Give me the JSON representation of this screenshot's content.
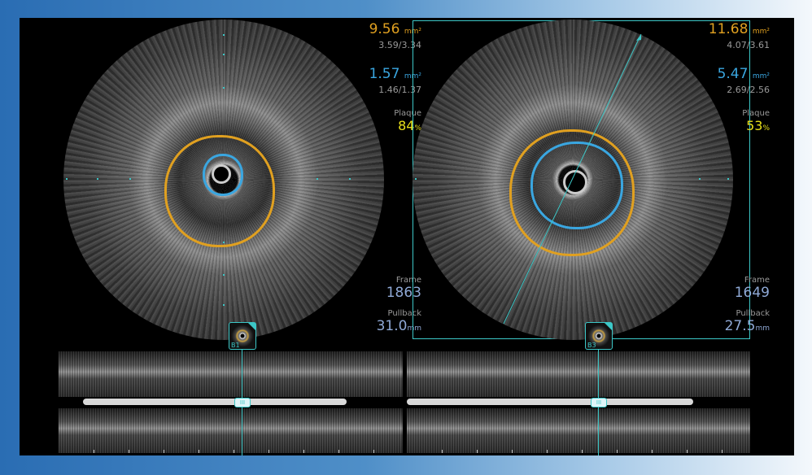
{
  "colors": {
    "eem": "#e0a020",
    "lumen": "#3aa6e0",
    "plaque": "#e8e01a",
    "accent": "#3cc7c7",
    "frame": "#8fa9d6"
  },
  "left": {
    "eem_area": "9.56",
    "eem_unit": "mm²",
    "eem_diam": "3.59/3.34",
    "lumen_area": "1.57",
    "lumen_unit": "mm²",
    "lumen_diam": "1.46/1.37",
    "plaque_label": "Plaque",
    "plaque_value": "84",
    "plaque_unit": "%",
    "frame_label": "Frame",
    "frame_value": "1863",
    "pullback_label": "Pullback",
    "pullback_value": "31.0",
    "pullback_unit": "mm",
    "bookmark": "B1",
    "bookmark_icon": "bookmark-thumbnail-icon"
  },
  "right": {
    "eem_area": "11.68",
    "eem_unit": "mm²",
    "eem_diam": "4.07/3.61",
    "lumen_area": "5.47",
    "lumen_unit": "mm²",
    "lumen_diam": "2.69/2.56",
    "plaque_label": "Plaque",
    "plaque_value": "53",
    "plaque_unit": "%",
    "frame_label": "Frame",
    "frame_value": "1649",
    "pullback_label": "Pullback",
    "pullback_value": "27.5",
    "pullback_unit": "mm",
    "bookmark": "B3",
    "bookmark_icon": "bookmark-thumbnail-icon"
  },
  "slider_handle": "III"
}
